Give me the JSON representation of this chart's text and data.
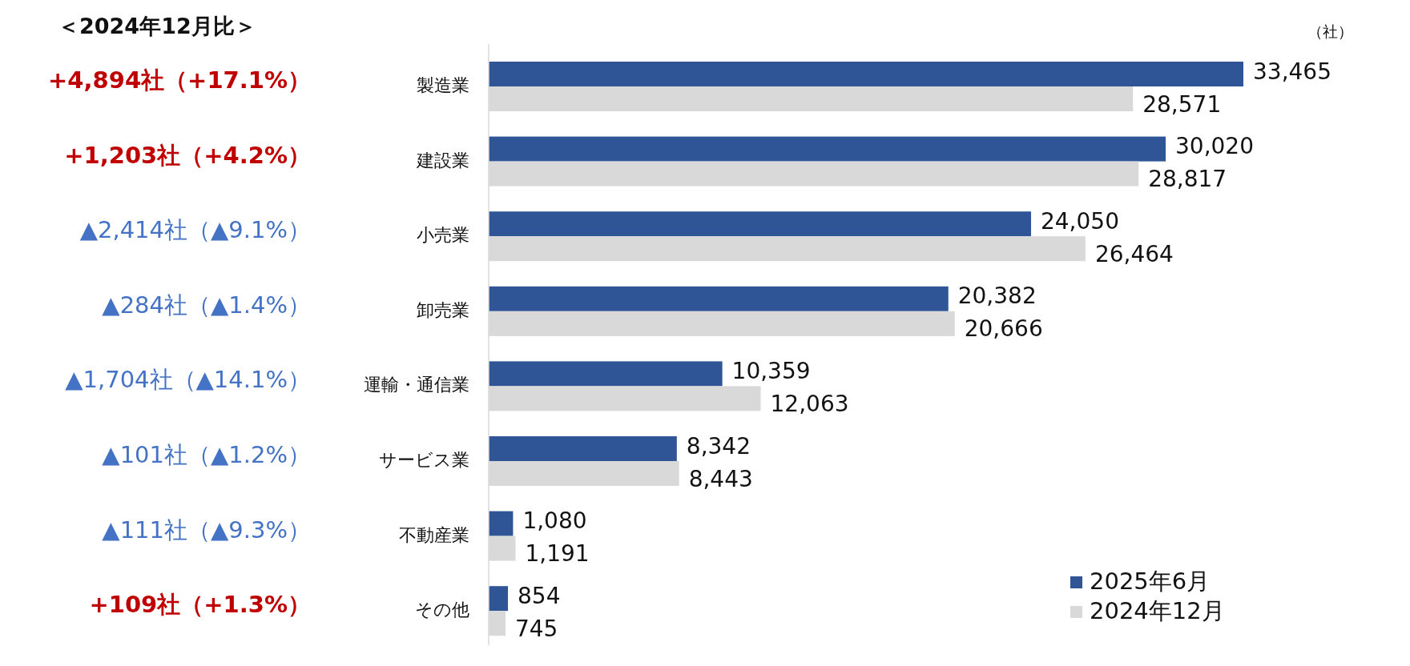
{
  "chart_data": {
    "type": "bar",
    "orientation": "horizontal",
    "legend": "bottom right",
    "categories": [
      "製造業",
      "建設業",
      "小売業",
      "卸売業",
      "運輸・通信業",
      "サービス業",
      "不動産業",
      "その他"
    ],
    "series": [
      {
        "name": "2025年6月",
        "color": "#2f5597",
        "values": [
          33465,
          30020,
          24050,
          20382,
          10359,
          8342,
          1080,
          854
        ],
        "value_labels": [
          "33,465",
          "30,020",
          "24,050",
          "20,382",
          "10,359",
          "8,342",
          "1,080",
          "854"
        ]
      },
      {
        "name": "2024年12月",
        "color": "#d9d9d9",
        "values": [
          28571,
          28817,
          26464,
          20666,
          12063,
          8443,
          1191,
          745
        ],
        "value_labels": [
          "28,571",
          "28,817",
          "26,464",
          "20,666",
          "12,063",
          "8,443",
          "1,191",
          "745"
        ]
      }
    ],
    "annotations": [
      "＜2024年12月比＞",
      "（社）",
      "+4,894社（+17.1%）",
      "+1,203社（+4.2%）",
      "▲2,414社（▲9.1%）",
      "▲284社（▲1.4%）",
      "▲1,704社（▲14.1%）",
      "▲101社（▲1.2%）",
      "▲111社（▲9.3%）",
      "+109社（+1.3%）"
    ]
  }
}
